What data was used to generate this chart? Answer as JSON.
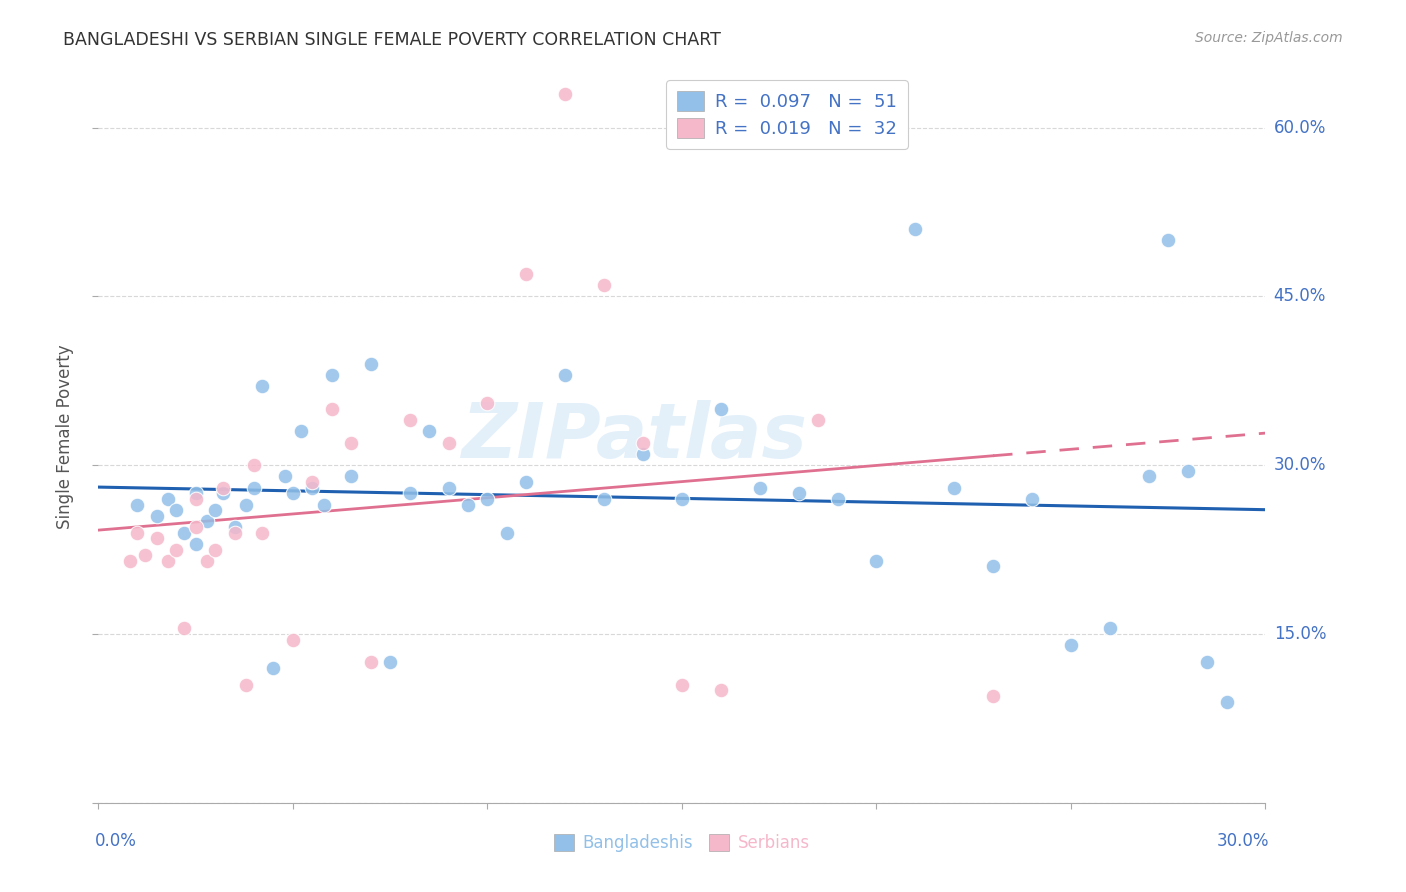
{
  "title": "BANGLADESHI VS SERBIAN SINGLE FEMALE POVERTY CORRELATION CHART",
  "source": "Source: ZipAtlas.com",
  "ylabel": "Single Female Poverty",
  "xlim": [
    0.0,
    0.3
  ],
  "ylim": [
    0.0,
    0.65
  ],
  "yticks": [
    0.0,
    0.15,
    0.3,
    0.45,
    0.6
  ],
  "ytick_labels": [
    "",
    "15.0%",
    "30.0%",
    "45.0%",
    "60.0%"
  ],
  "legend_r1": "0.097",
  "legend_n1": "51",
  "legend_r2": "0.019",
  "legend_n2": "32",
  "blue_color": "#92c0e8",
  "pink_color": "#f5b8cb",
  "blue_line_color": "#2060b0",
  "pink_line_color": "#e07090",
  "legend_text_color": "#4472c4",
  "axis_text_color": "#4472c4",
  "background_color": "#ffffff",
  "grid_color": "#d8d8d8",
  "watermark": "ZIPatlas",
  "blue_x": [
    0.01,
    0.015,
    0.018,
    0.02,
    0.022,
    0.025,
    0.025,
    0.028,
    0.03,
    0.032,
    0.035,
    0.038,
    0.04,
    0.042,
    0.045,
    0.048,
    0.05,
    0.052,
    0.055,
    0.058,
    0.06,
    0.065,
    0.07,
    0.075,
    0.08,
    0.085,
    0.09,
    0.095,
    0.1,
    0.105,
    0.11,
    0.12,
    0.13,
    0.14,
    0.15,
    0.16,
    0.17,
    0.18,
    0.19,
    0.2,
    0.21,
    0.22,
    0.23,
    0.24,
    0.25,
    0.26,
    0.27,
    0.275,
    0.28,
    0.285,
    0.29
  ],
  "blue_y": [
    0.265,
    0.255,
    0.27,
    0.26,
    0.24,
    0.275,
    0.23,
    0.25,
    0.26,
    0.275,
    0.245,
    0.265,
    0.28,
    0.37,
    0.12,
    0.29,
    0.275,
    0.33,
    0.28,
    0.265,
    0.38,
    0.29,
    0.39,
    0.125,
    0.275,
    0.33,
    0.28,
    0.265,
    0.27,
    0.24,
    0.285,
    0.38,
    0.27,
    0.31,
    0.27,
    0.35,
    0.28,
    0.275,
    0.27,
    0.215,
    0.51,
    0.28,
    0.21,
    0.27,
    0.14,
    0.155,
    0.29,
    0.5,
    0.295,
    0.125,
    0.09
  ],
  "pink_x": [
    0.008,
    0.01,
    0.012,
    0.015,
    0.018,
    0.02,
    0.022,
    0.025,
    0.025,
    0.028,
    0.03,
    0.032,
    0.035,
    0.038,
    0.04,
    0.042,
    0.05,
    0.055,
    0.06,
    0.065,
    0.07,
    0.08,
    0.09,
    0.1,
    0.11,
    0.12,
    0.13,
    0.14,
    0.15,
    0.16,
    0.185,
    0.23
  ],
  "pink_y": [
    0.215,
    0.24,
    0.22,
    0.235,
    0.215,
    0.225,
    0.155,
    0.245,
    0.27,
    0.215,
    0.225,
    0.28,
    0.24,
    0.105,
    0.3,
    0.24,
    0.145,
    0.285,
    0.35,
    0.32,
    0.125,
    0.34,
    0.32,
    0.355,
    0.47,
    0.63,
    0.46,
    0.32,
    0.105,
    0.1,
    0.34,
    0.095
  ]
}
